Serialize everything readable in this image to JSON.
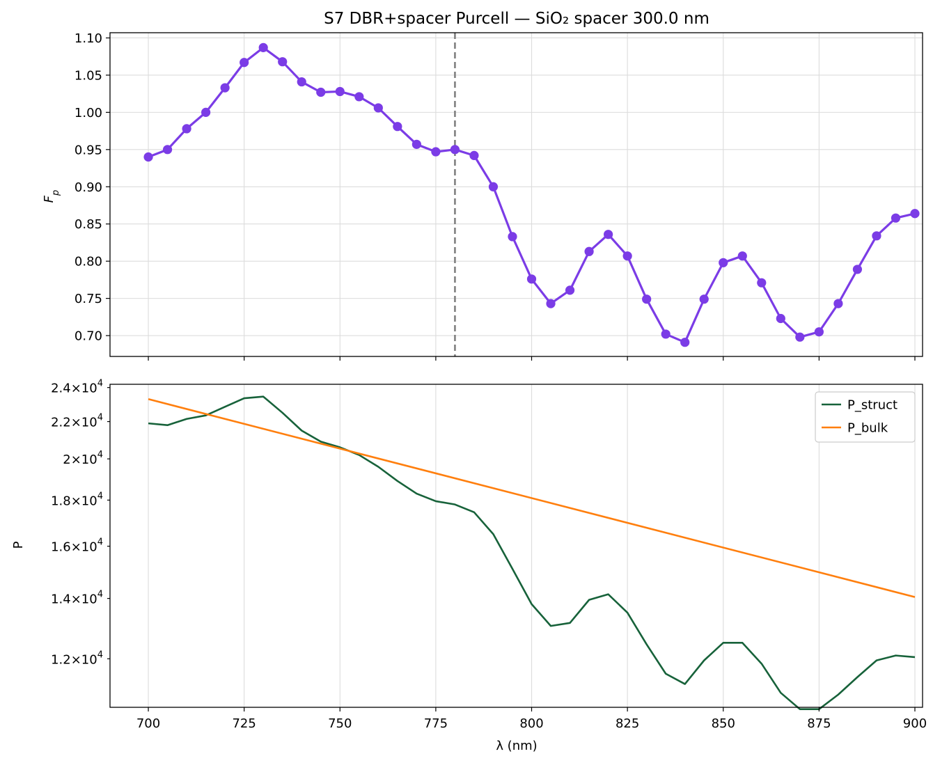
{
  "figure": {
    "title": "S7 DBR+spacer Purcell — SiO₂ spacer 300.0 nm"
  },
  "chart_data": [
    {
      "type": "line",
      "panel": "top",
      "title": "S7 DBR+spacer Purcell — SiO₂ spacer 300.0 nm",
      "xlabel": "",
      "ylabel": "F_p",
      "ylabel_main": "F",
      "ylabel_sub": "p",
      "xlim": [
        690,
        902
      ],
      "ylim": [
        0.672,
        1.107
      ],
      "x_ticks": [
        700,
        725,
        750,
        775,
        800,
        825,
        850,
        875,
        900
      ],
      "y_ticks": [
        0.7,
        0.75,
        0.8,
        0.85,
        0.9,
        0.95,
        1.0,
        1.05,
        1.1
      ],
      "y_tick_labels": [
        "0.70",
        "0.75",
        "0.80",
        "0.85",
        "0.90",
        "0.95",
        "1.00",
        "1.05",
        "1.10"
      ],
      "grid": true,
      "marker": "circle",
      "vertical_line": {
        "x": 780,
        "style": "dashed",
        "color": "#808080"
      },
      "series": [
        {
          "color": "#7b3ce6",
          "x": [
            700,
            705,
            710,
            715,
            720,
            725,
            730,
            735,
            740,
            745,
            750,
            755,
            760,
            765,
            770,
            775,
            780,
            785,
            790,
            795,
            800,
            805,
            810,
            815,
            820,
            825,
            830,
            835,
            840,
            845,
            850,
            855,
            860,
            865,
            870,
            875,
            880,
            885,
            890,
            895,
            900
          ],
          "y": [
            0.94,
            0.95,
            0.978,
            1.0,
            1.033,
            1.067,
            1.087,
            1.068,
            1.041,
            1.027,
            1.028,
            1.021,
            1.006,
            0.981,
            0.957,
            0.947,
            0.95,
            0.942,
            0.9,
            0.833,
            0.776,
            0.743,
            0.761,
            0.813,
            0.836,
            0.807,
            0.749,
            0.702,
            0.691,
            0.749,
            0.798,
            0.807,
            0.771,
            0.723,
            0.698,
            0.705,
            0.743,
            0.789,
            0.834,
            0.858,
            0.864
          ]
        }
      ]
    },
    {
      "type": "line",
      "panel": "bottom",
      "xlabel": "λ (nm)",
      "ylabel": "P",
      "yscale": "log",
      "xlim": [
        690,
        902
      ],
      "ylim": [
        10600,
        24200
      ],
      "x_ticks": [
        700,
        725,
        750,
        775,
        800,
        825,
        850,
        875,
        900
      ],
      "x_tick_labels": [
        "700",
        "725",
        "750",
        "775",
        "800",
        "825",
        "850",
        "875",
        "900"
      ],
      "y_ticks": [
        12000,
        14000,
        16000,
        18000,
        20000,
        22000,
        24000
      ],
      "y_tick_labels": [
        {
          "coef": "1.2",
          "times": "×",
          "base": "10",
          "exp": "4"
        },
        {
          "coef": "1.4",
          "times": "×",
          "base": "10",
          "exp": "4"
        },
        {
          "coef": "1.6",
          "times": "×",
          "base": "10",
          "exp": "4"
        },
        {
          "coef": "1.8",
          "times": "×",
          "base": "10",
          "exp": "4"
        },
        {
          "coef": "2",
          "times": "×",
          "base": "10",
          "exp": "4"
        },
        {
          "coef": "2.2",
          "times": "×",
          "base": "10",
          "exp": "4"
        },
        {
          "coef": "2.4",
          "times": "×",
          "base": "10",
          "exp": "4"
        }
      ],
      "grid": true,
      "legend_position": "top-right",
      "series": [
        {
          "name": "P_struct",
          "color": "#17623a",
          "x": [
            700,
            705,
            710,
            715,
            720,
            725,
            730,
            735,
            740,
            745,
            750,
            755,
            760,
            765,
            770,
            775,
            780,
            785,
            790,
            795,
            800,
            805,
            810,
            815,
            820,
            825,
            830,
            835,
            840,
            845,
            850,
            855,
            860,
            865,
            870,
            875,
            880,
            885,
            890,
            895,
            900
          ],
          "y": [
            21900,
            21800,
            22150,
            22350,
            22850,
            23350,
            23450,
            22500,
            21500,
            20900,
            20600,
            20200,
            19600,
            18900,
            18300,
            17950,
            17800,
            17450,
            16500,
            15100,
            13800,
            13050,
            13150,
            13950,
            14150,
            13500,
            12450,
            11550,
            11250,
            11950,
            12500,
            12500,
            11850,
            11000,
            10550,
            10550,
            10950,
            11450,
            11950,
            12100,
            12050
          ]
        },
        {
          "name": "P_bulk",
          "color": "#ff7f0e",
          "x": [
            700,
            900
          ],
          "y": [
            23300,
            14050
          ]
        }
      ]
    }
  ]
}
